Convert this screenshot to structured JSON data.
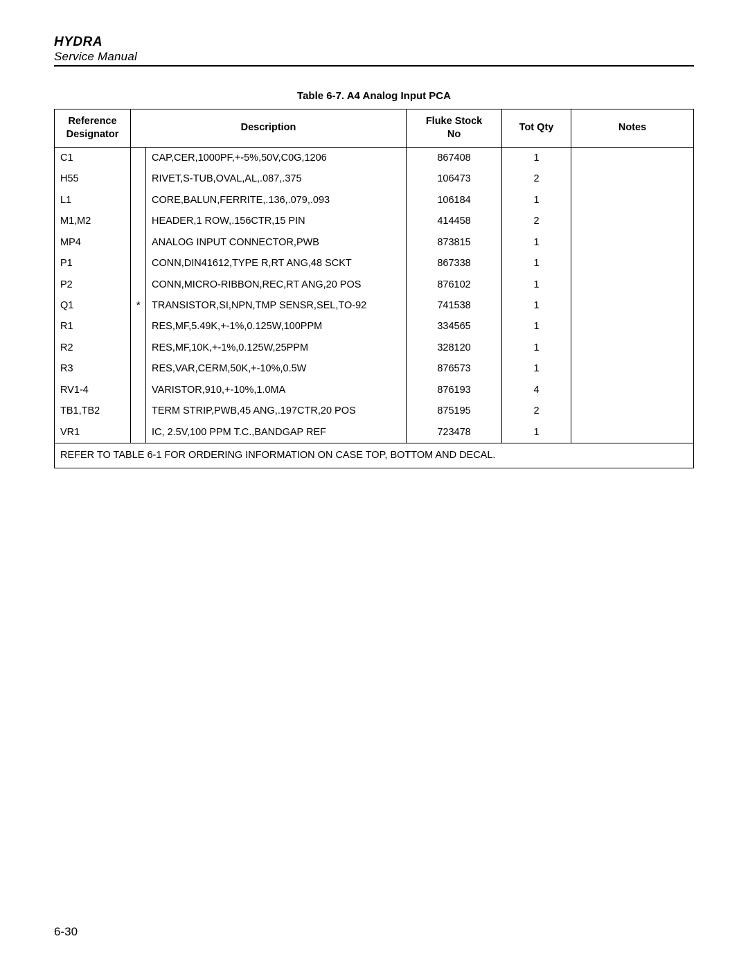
{
  "header": {
    "title": "HYDRA",
    "subtitle": "Service Manual"
  },
  "table": {
    "caption": "Table 6-7. A4 Analog Input PCA",
    "columns": {
      "ref": "Reference Designator",
      "desc": "Description",
      "stock": "Fluke Stock No",
      "qty": "Tot Qty",
      "notes": "Notes"
    },
    "rows": [
      {
        "ref": "C1",
        "star": "",
        "desc": "CAP,CER,1000PF,+-5%,50V,C0G,1206",
        "stock": "867408",
        "qty": "1",
        "notes": ""
      },
      {
        "ref": "H55",
        "star": "",
        "desc": "RIVET,S-TUB,OVAL,AL,.087,.375",
        "stock": "106473",
        "qty": "2",
        "notes": ""
      },
      {
        "ref": "L1",
        "star": "",
        "desc": "CORE,BALUN,FERRITE,.136,.079,.093",
        "stock": "106184",
        "qty": "1",
        "notes": ""
      },
      {
        "ref": "M1,M2",
        "star": "",
        "desc": "HEADER,1 ROW,.156CTR,15 PIN",
        "stock": "414458",
        "qty": "2",
        "notes": ""
      },
      {
        "ref": "MP4",
        "star": "",
        "desc": "ANALOG INPUT CONNECTOR,PWB",
        "stock": "873815",
        "qty": "1",
        "notes": ""
      },
      {
        "ref": "P1",
        "star": "",
        "desc": "CONN,DIN41612,TYPE R,RT ANG,48 SCKT",
        "stock": "867338",
        "qty": "1",
        "notes": ""
      },
      {
        "ref": "P2",
        "star": "",
        "desc": "CONN,MICRO-RIBBON,REC,RT ANG,20 POS",
        "stock": "876102",
        "qty": "1",
        "notes": ""
      },
      {
        "ref": "Q1",
        "star": "*",
        "desc": "TRANSISTOR,SI,NPN,TMP SENSR,SEL,TO-92",
        "stock": "741538",
        "qty": "1",
        "notes": ""
      },
      {
        "ref": "R1",
        "star": "",
        "desc": "RES,MF,5.49K,+-1%,0.125W,100PPM",
        "stock": "334565",
        "qty": "1",
        "notes": ""
      },
      {
        "ref": "R2",
        "star": "",
        "desc": "RES,MF,10K,+-1%,0.125W,25PPM",
        "stock": "328120",
        "qty": "1",
        "notes": ""
      },
      {
        "ref": "R3",
        "star": "",
        "desc": "RES,VAR,CERM,50K,+-10%,0.5W",
        "stock": "876573",
        "qty": "1",
        "notes": ""
      },
      {
        "ref": "RV1-4",
        "star": "",
        "desc": "VARISTOR,910,+-10%,1.0MA",
        "stock": "876193",
        "qty": "4",
        "notes": ""
      },
      {
        "ref": "TB1,TB2",
        "star": "",
        "desc": "TERM STRIP,PWB,45 ANG,.197CTR,20 POS",
        "stock": "875195",
        "qty": "2",
        "notes": ""
      },
      {
        "ref": "VR1",
        "star": "",
        "desc": "IC, 2.5V,100 PPM T.C.,BANDGAP REF",
        "stock": "723478",
        "qty": "1",
        "notes": ""
      }
    ],
    "footnote": "REFER TO TABLE 6-1 FOR ORDERING INFORMATION ON CASE TOP, BOTTOM AND DECAL."
  },
  "page_number": "6-30"
}
